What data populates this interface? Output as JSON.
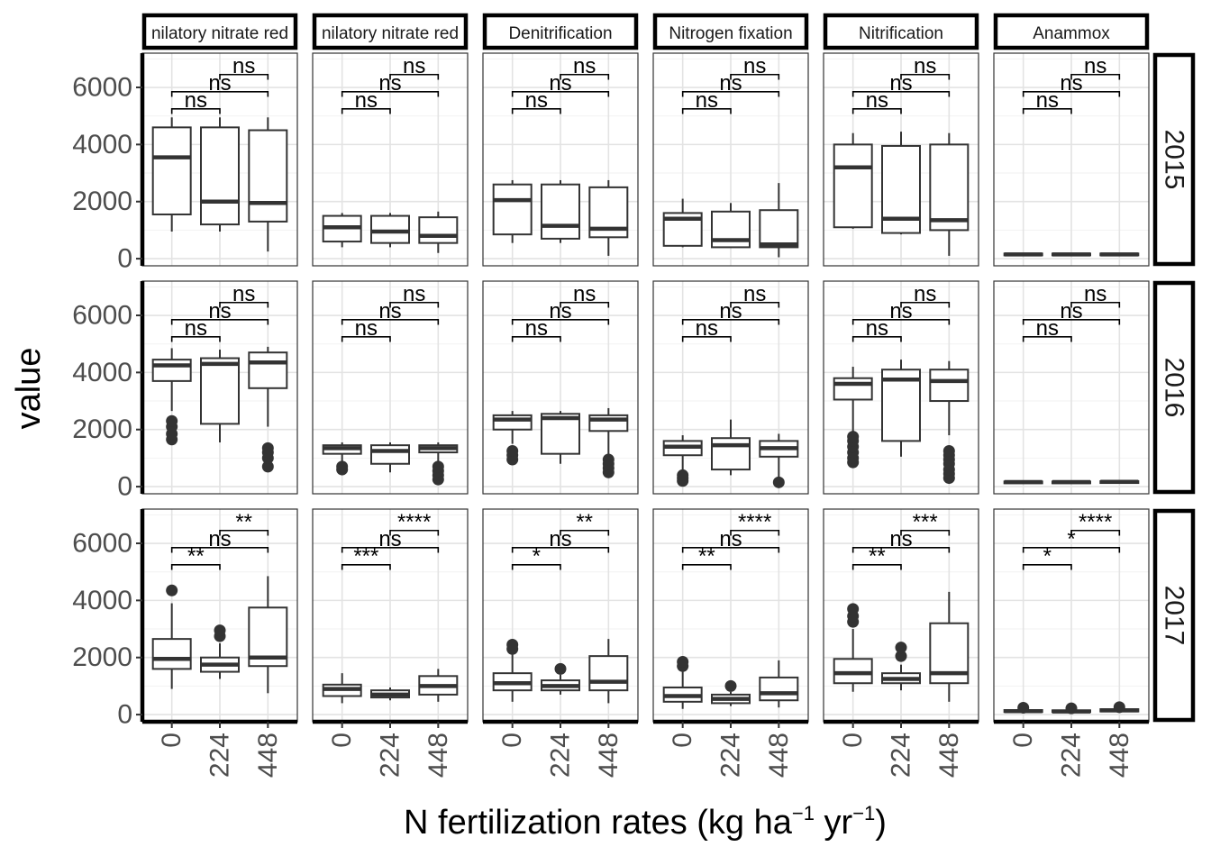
{
  "chart_data": {
    "type": "boxplot",
    "xlabel_main": "N fertilization rates ",
    "xlabel_unit_open": "(",
    "xlabel_unit_kg": "kg ha",
    "xlabel_unit_exp1": "−1",
    "xlabel_unit_yr": " yr",
    "xlabel_unit_exp2": "−1",
    "xlabel_unit_close": ")",
    "ylabel": "value",
    "ylim": [
      -250,
      7200
    ],
    "y_ticks": [
      0,
      2000,
      4000,
      6000
    ],
    "y_tick_labels": [
      "0",
      "2000",
      "4000",
      "6000"
    ],
    "categories": [
      "0",
      "224",
      "448"
    ],
    "facet_columns": [
      "nilatory nitrate red",
      "nilatory nitrate red",
      "Denitrification",
      "Nitrogen fixation",
      "Nitrification",
      "Anammox"
    ],
    "facet_rows": [
      "2015",
      "2016",
      "2017"
    ],
    "grid": true,
    "comparisons": [
      [
        "0",
        "224"
      ],
      [
        "0",
        "448"
      ],
      [
        "224",
        "448"
      ]
    ],
    "significance": {
      "2015": [
        [
          "ns",
          "ns",
          "ns"
        ],
        [
          "ns",
          "ns",
          "ns"
        ],
        [
          "ns",
          "ns",
          "ns"
        ],
        [
          "ns",
          "ns",
          "ns"
        ],
        [
          "ns",
          "ns",
          "ns"
        ],
        [
          "ns",
          "ns",
          "ns"
        ]
      ],
      "2016": [
        [
          "ns",
          "ns",
          "ns"
        ],
        [
          "ns",
          "ns",
          "ns"
        ],
        [
          "ns",
          "ns",
          "ns"
        ],
        [
          "ns",
          "ns",
          "ns"
        ],
        [
          "ns",
          "ns",
          "ns"
        ],
        [
          "ns",
          "ns",
          "ns"
        ]
      ],
      "2017": [
        [
          "**",
          "ns",
          "**"
        ],
        [
          "***",
          "ns",
          "****"
        ],
        [
          "*",
          "ns",
          "**"
        ],
        [
          "**",
          "ns",
          "****"
        ],
        [
          "**",
          "ns",
          "***"
        ],
        [
          "*",
          "*",
          "****"
        ]
      ]
    },
    "boxes": {
      "2015": [
        [
          {
            "low": 950,
            "q1": 1550,
            "med": 3550,
            "q3": 4600,
            "high": 4950,
            "out": []
          },
          {
            "low": 950,
            "q1": 1200,
            "med": 2000,
            "q3": 4600,
            "high": 4950,
            "out": []
          },
          {
            "low": 250,
            "q1": 1300,
            "med": 1950,
            "q3": 4500,
            "high": 4950,
            "out": []
          }
        ],
        [
          {
            "low": 400,
            "q1": 600,
            "med": 1100,
            "q3": 1500,
            "high": 1600,
            "out": []
          },
          {
            "low": 400,
            "q1": 550,
            "med": 950,
            "q3": 1500,
            "high": 1600,
            "out": []
          },
          {
            "low": 200,
            "q1": 550,
            "med": 800,
            "q3": 1450,
            "high": 1650,
            "out": []
          }
        ],
        [
          {
            "low": 550,
            "q1": 850,
            "med": 2050,
            "q3": 2600,
            "high": 2750,
            "out": []
          },
          {
            "low": 550,
            "q1": 700,
            "med": 1150,
            "q3": 2600,
            "high": 2750,
            "out": []
          },
          {
            "low": 100,
            "q1": 750,
            "med": 1050,
            "q3": 2500,
            "high": 2750,
            "out": []
          }
        ],
        [
          {
            "low": 400,
            "q1": 450,
            "med": 1400,
            "q3": 1600,
            "high": 2100,
            "out": []
          },
          {
            "low": 400,
            "q1": 400,
            "med": 650,
            "q3": 1650,
            "high": 1950,
            "out": []
          },
          {
            "low": 50,
            "q1": 400,
            "med": 500,
            "q3": 1700,
            "high": 2650,
            "out": []
          }
        ],
        [
          {
            "low": 1050,
            "q1": 1100,
            "med": 3200,
            "q3": 4000,
            "high": 4400,
            "out": []
          },
          {
            "low": 850,
            "q1": 900,
            "med": 1400,
            "q3": 3950,
            "high": 4450,
            "out": []
          },
          {
            "low": 100,
            "q1": 1000,
            "med": 1350,
            "q3": 4000,
            "high": 4400,
            "out": []
          }
        ],
        [
          {
            "low": 100,
            "q1": 120,
            "med": 150,
            "q3": 180,
            "high": 200,
            "out": []
          },
          {
            "low": 100,
            "q1": 120,
            "med": 150,
            "q3": 180,
            "high": 200,
            "out": []
          },
          {
            "low": 100,
            "q1": 120,
            "med": 150,
            "q3": 180,
            "high": 200,
            "out": []
          }
        ]
      ],
      "2016": [
        [
          {
            "low": 2650,
            "q1": 3700,
            "med": 4250,
            "q3": 4450,
            "high": 4850,
            "out": [
              1650,
              1850,
              2100,
              2300
            ]
          },
          {
            "low": 1550,
            "q1": 2200,
            "med": 4300,
            "q3": 4500,
            "high": 4800,
            "out": []
          },
          {
            "low": 2100,
            "q1": 3450,
            "med": 4350,
            "q3": 4700,
            "high": 4900,
            "out": [
              700,
              1000,
              1200,
              1350
            ]
          }
        ],
        [
          {
            "low": 900,
            "q1": 1150,
            "med": 1350,
            "q3": 1450,
            "high": 1550,
            "out": [
              600,
              700
            ]
          },
          {
            "low": 500,
            "q1": 800,
            "med": 1250,
            "q3": 1450,
            "high": 1550,
            "out": []
          },
          {
            "low": 900,
            "q1": 1200,
            "med": 1350,
            "q3": 1450,
            "high": 1550,
            "out": [
              250,
              400,
              550,
              700
            ]
          }
        ],
        [
          {
            "low": 1500,
            "q1": 2000,
            "med": 2350,
            "q3": 2500,
            "high": 2650,
            "out": [
              950,
              1100,
              1250
            ]
          },
          {
            "low": 800,
            "q1": 1150,
            "med": 2400,
            "q3": 2550,
            "high": 2650,
            "out": []
          },
          {
            "low": 1100,
            "q1": 1950,
            "med": 2350,
            "q3": 2500,
            "high": 2750,
            "out": [
              500,
              650,
              800,
              950
            ]
          }
        ],
        [
          {
            "low": 500,
            "q1": 1100,
            "med": 1400,
            "q3": 1600,
            "high": 1800,
            "out": [
              200,
              300,
              400
            ]
          },
          {
            "low": 400,
            "q1": 600,
            "med": 1450,
            "q3": 1700,
            "high": 2350,
            "out": []
          },
          {
            "low": 350,
            "q1": 1050,
            "med": 1350,
            "q3": 1600,
            "high": 1850,
            "out": [
              150
            ]
          }
        ],
        [
          {
            "low": 1900,
            "q1": 3050,
            "med": 3600,
            "q3": 3800,
            "high": 4200,
            "out": [
              850,
              1000,
              1200,
              1400,
              1600,
              1750
            ]
          },
          {
            "low": 1050,
            "q1": 1600,
            "med": 3750,
            "q3": 4100,
            "high": 4450,
            "out": []
          },
          {
            "low": 1800,
            "q1": 3000,
            "med": 3700,
            "q3": 4100,
            "high": 4400,
            "out": [
              300,
              450,
              600,
              800,
              950,
              1100,
              1250
            ]
          }
        ],
        [
          {
            "low": 120,
            "q1": 140,
            "med": 160,
            "q3": 180,
            "high": 200,
            "out": []
          },
          {
            "low": 120,
            "q1": 140,
            "med": 160,
            "q3": 180,
            "high": 200,
            "out": []
          },
          {
            "low": 130,
            "q1": 150,
            "med": 170,
            "q3": 190,
            "high": 210,
            "out": []
          }
        ]
      ],
      "2017": [
        [
          {
            "low": 900,
            "q1": 1600,
            "med": 1950,
            "q3": 2650,
            "high": 3900,
            "out": [
              4350
            ]
          },
          {
            "low": 1250,
            "q1": 1500,
            "med": 1750,
            "q3": 2000,
            "high": 2500,
            "out": [
              2750,
              2950
            ]
          },
          {
            "low": 750,
            "q1": 1700,
            "med": 2000,
            "q3": 3750,
            "high": 4850,
            "out": []
          }
        ],
        [
          {
            "low": 400,
            "q1": 650,
            "med": 900,
            "q3": 1050,
            "high": 1450,
            "out": []
          },
          {
            "low": 500,
            "q1": 600,
            "med": 700,
            "q3": 850,
            "high": 950,
            "out": []
          },
          {
            "low": 450,
            "q1": 700,
            "med": 1000,
            "q3": 1350,
            "high": 1600,
            "out": []
          }
        ],
        [
          {
            "low": 450,
            "q1": 850,
            "med": 1100,
            "q3": 1450,
            "high": 2100,
            "out": [
              2300,
              2450
            ]
          },
          {
            "low": 700,
            "q1": 850,
            "med": 1000,
            "q3": 1200,
            "high": 1400,
            "out": [
              1600
            ]
          },
          {
            "low": 400,
            "q1": 850,
            "med": 1150,
            "q3": 2050,
            "high": 2650,
            "out": []
          }
        ],
        [
          {
            "low": 200,
            "q1": 450,
            "med": 650,
            "q3": 950,
            "high": 1500,
            "out": [
              1700,
              1850
            ]
          },
          {
            "low": 300,
            "q1": 400,
            "med": 550,
            "q3": 700,
            "high": 800,
            "out": [
              1000
            ]
          },
          {
            "low": 250,
            "q1": 500,
            "med": 750,
            "q3": 1300,
            "high": 1900,
            "out": []
          }
        ],
        [
          {
            "low": 800,
            "q1": 1100,
            "med": 1450,
            "q3": 1950,
            "high": 3000,
            "out": [
              3250,
              3450,
              3700
            ]
          },
          {
            "low": 850,
            "q1": 1100,
            "med": 1250,
            "q3": 1450,
            "high": 1750,
            "out": [
              2050,
              2350
            ]
          },
          {
            "low": 450,
            "q1": 1100,
            "med": 1450,
            "q3": 3200,
            "high": 4300,
            "out": []
          }
        ],
        [
          {
            "low": 60,
            "q1": 90,
            "med": 120,
            "q3": 160,
            "high": 200,
            "out": [
              240
            ]
          },
          {
            "low": 60,
            "q1": 90,
            "med": 110,
            "q3": 150,
            "high": 190,
            "out": [
              220
            ]
          },
          {
            "low": 80,
            "q1": 110,
            "med": 150,
            "q3": 190,
            "high": 230,
            "out": [
              260
            ]
          }
        ]
      ]
    }
  }
}
